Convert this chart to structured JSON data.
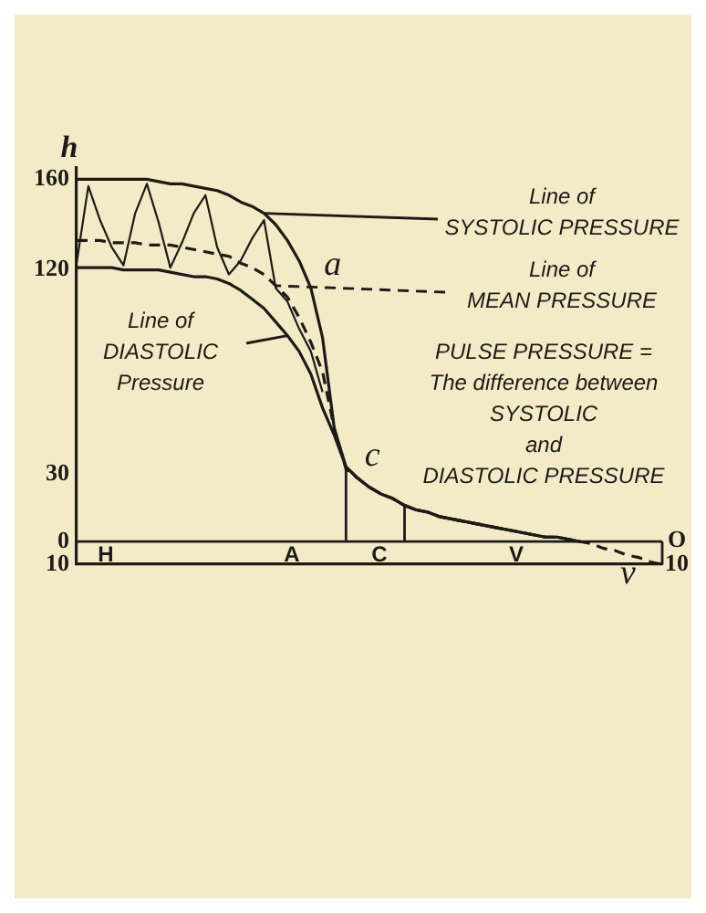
{
  "chart_data": {
    "type": "line",
    "ylabel": "h",
    "categories": [
      null,
      null,
      null,
      null,
      null,
      null,
      null,
      null,
      null,
      null,
      null,
      null,
      null,
      null,
      null,
      null,
      null,
      null,
      null,
      null,
      null,
      null,
      null,
      null,
      null,
      null,
      null,
      null,
      null,
      null,
      null,
      null,
      null,
      null,
      null,
      null,
      null,
      null,
      null,
      null,
      null,
      null,
      null,
      null,
      null,
      null,
      null,
      null,
      null,
      null,
      null
    ],
    "ylim": [
      -10,
      165
    ],
    "yticks": [
      {
        "value": -10,
        "label": "10"
      },
      0,
      30,
      120,
      160
    ],
    "tick_labels": "y",
    "marker": "none",
    "grid": false,
    "legend": false,
    "series": [
      {
        "color": "#1e1a16",
        "line_style": "solid",
        "values": [
          160,
          160,
          160,
          160,
          160,
          160,
          160,
          159,
          158,
          158,
          157,
          156,
          155,
          153,
          150,
          148,
          145,
          140,
          133,
          124,
          112,
          90,
          50,
          33,
          28,
          24,
          21,
          19,
          16,
          14,
          13,
          11,
          10,
          9,
          8,
          7,
          6,
          5,
          4,
          3,
          2,
          2,
          1,
          0,
          null,
          null,
          null,
          null,
          null,
          null,
          null
        ]
      },
      {
        "color": "#1e1a16",
        "line_style": "solid",
        "values": [
          121,
          121,
          121,
          121,
          120,
          120,
          120,
          120,
          119,
          118,
          117,
          117,
          116,
          114,
          111,
          107,
          103,
          97,
          91,
          84,
          74,
          59,
          47,
          33,
          28,
          24,
          21,
          19,
          16,
          14,
          13,
          11,
          10,
          9,
          8,
          7,
          6,
          5,
          4,
          3,
          2,
          2,
          1,
          0,
          null,
          null,
          null,
          null,
          null,
          null,
          null
        ]
      },
      {
        "color": "#1e1a16",
        "line_style": "dashed",
        "values": [
          133,
          133,
          133,
          132,
          132,
          132,
          131,
          131,
          131,
          130,
          129,
          128,
          127,
          126,
          123,
          121,
          118,
          113,
          108,
          99,
          88,
          75,
          50,
          32,
          28,
          24,
          21,
          19,
          16,
          14,
          13,
          11,
          10,
          9,
          8,
          7,
          6,
          5,
          4,
          3,
          2,
          2,
          1,
          0,
          -1,
          -3,
          -4,
          -6,
          -7,
          -9,
          -10
        ]
      },
      {
        "color": "#1e1a16",
        "line_style": "solid",
        "values": [
          123,
          157,
          142,
          130,
          122,
          145,
          158,
          141,
          121,
          132,
          145,
          153,
          130,
          118,
          124,
          134,
          142,
          112,
          106,
          94,
          84,
          66,
          null,
          null,
          null,
          null,
          null,
          null,
          null,
          null,
          null,
          null,
          null,
          null,
          null,
          null,
          null,
          null,
          null,
          null,
          null,
          null,
          null,
          null,
          null,
          null,
          null,
          null,
          null,
          null,
          null
        ]
      }
    ],
    "ref_lines": [
      {
        "axis": "y",
        "value": 0
      }
    ],
    "annotations": [
      "Line of\nSYSTOLIC PRESSURE",
      "Line of\nMEAN PRESSURE",
      "Line of\nDIASTOLIC\nPressure",
      "PULSE PRESSURE =\nThe difference between\nSYSTOLIC\nand\nDIASTOLIC PRESSURE",
      "a",
      "c",
      "v",
      "H",
      "A",
      "C",
      "V",
      "O",
      "10"
    ]
  }
}
